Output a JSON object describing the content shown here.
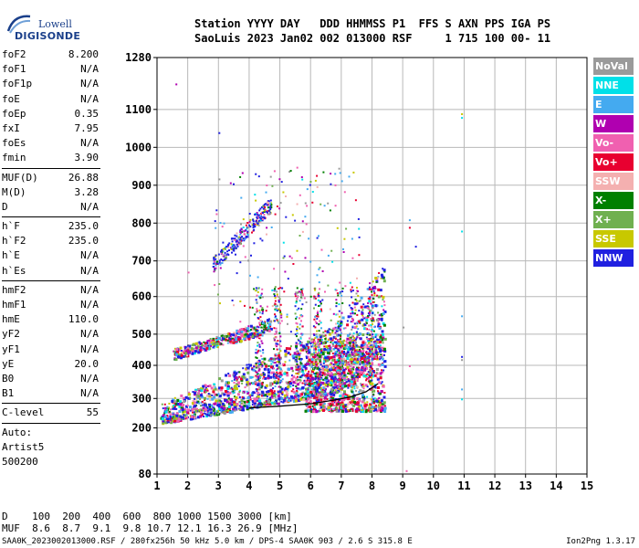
{
  "logo": {
    "line1": "Lowell",
    "line2": "DIGISONDE"
  },
  "header": {
    "row1": "Station YYYY DAY   DDD HHMMSS P1  FFS S AXN PPS IGA PS",
    "row2": "SaoLuis 2023 Jan02 002 013000 RSF     1 715 100 00- 11"
  },
  "params_group1": [
    {
      "name": "foF2",
      "value": "8.200"
    },
    {
      "name": "foF1",
      "value": "N/A"
    },
    {
      "name": "foF1p",
      "value": "N/A"
    },
    {
      "name": "foE",
      "value": "N/A"
    },
    {
      "name": "foEp",
      "value": "0.35"
    },
    {
      "name": "fxI",
      "value": "7.95"
    },
    {
      "name": "foEs",
      "value": "N/A"
    },
    {
      "name": "fmin",
      "value": "3.90"
    }
  ],
  "params_group2": [
    {
      "name": "MUF(D)",
      "value": "26.88"
    },
    {
      "name": "M(D)",
      "value": "3.28"
    },
    {
      "name": "D",
      "value": "N/A"
    }
  ],
  "params_group3": [
    {
      "name": "h`F",
      "value": "235.0"
    },
    {
      "name": "h`F2",
      "value": "235.0"
    },
    {
      "name": "h`E",
      "value": "N/A"
    },
    {
      "name": "h`Es",
      "value": "N/A"
    }
  ],
  "params_group4": [
    {
      "name": "hmF2",
      "value": "N/A"
    },
    {
      "name": "hmF1",
      "value": "N/A"
    },
    {
      "name": "hmE",
      "value": "110.0"
    },
    {
      "name": "yF2",
      "value": "N/A"
    },
    {
      "name": "yF1",
      "value": "N/A"
    },
    {
      "name": "yE",
      "value": "20.0"
    },
    {
      "name": "B0",
      "value": "N/A"
    },
    {
      "name": "B1",
      "value": "N/A"
    }
  ],
  "params_group5": [
    {
      "name": "C-level",
      "value": "55"
    }
  ],
  "autoscale": {
    "line1": "Auto:",
    "line2": "Artist5",
    "line3": "500200"
  },
  "legend": [
    {
      "label": "NoVal",
      "color": "#9a9a9a"
    },
    {
      "label": "NNE",
      "color": "#00e0e8"
    },
    {
      "label": "E",
      "color": "#44aaf0"
    },
    {
      "label": "W",
      "color": "#b000b0"
    },
    {
      "label": "Vo-",
      "color": "#f060b0"
    },
    {
      "label": "Vo+",
      "color": "#e80030"
    },
    {
      "label": "SSW",
      "color": "#f4b0b0"
    },
    {
      "label": "X-",
      "color": "#008000"
    },
    {
      "label": "X+",
      "color": "#70b050"
    },
    {
      "label": "SSE",
      "color": "#c8c800"
    },
    {
      "label": "NNW",
      "color": "#2020e0"
    }
  ],
  "footer": {
    "d_row": "D    100  200  400  600  800 1000 1500 3000 [km]",
    "muf_row": "MUF  8.6  8.7  9.1  9.8 10.7 12.1 16.3 26.9 [MHz]",
    "info": "SAA0K_2023002013000.RSF / 280fx256h 50 kHz 5.0 km / DPS-4 SAA0K 903 / 2.6 S 315.8 E",
    "version": "Ion2Png 1.3.17"
  },
  "chart_data": {
    "type": "scatter",
    "title": "",
    "xlabel": "",
    "ylabel": "",
    "x_unit": "MHz",
    "y_unit": "km",
    "xlim": [
      1,
      15
    ],
    "ylim": [
      80,
      1280
    ],
    "y_scale": "nonlinear (ionogram virtual height scale)",
    "x_ticks": [
      1,
      2,
      3,
      4,
      5,
      6,
      7,
      8,
      9,
      10,
      11,
      12,
      13,
      14,
      15
    ],
    "y_ticks": [
      80,
      200,
      300,
      400,
      500,
      600,
      700,
      800,
      900,
      1000,
      1100,
      1280
    ],
    "y_tick_positions": [
      {
        "v": 80,
        "p": 0
      },
      {
        "v": 200,
        "p": 0.1108
      },
      {
        "v": 300,
        "p": 0.1814
      },
      {
        "v": 400,
        "p": 0.2609
      },
      {
        "v": 500,
        "p": 0.3358
      },
      {
        "v": 600,
        "p": 0.4261
      },
      {
        "v": 700,
        "p": 0.5117
      },
      {
        "v": 800,
        "p": 0.6025
      },
      {
        "v": 900,
        "p": 0.6934
      },
      {
        "v": 1000,
        "p": 0.7844
      },
      {
        "v": 1100,
        "p": 0.8754
      },
      {
        "v": 1280,
        "p": 1.0
      }
    ],
    "grid": true,
    "legend_position": "right",
    "trace_description": "Dense scatter of echoes: main F-layer trace from ~1.1 MHz (~215 km) rising to ~8.2 MHz (~360 km); second-hop trace ~1.5-4.7 MHz (420-580 km); third-hop ~2.8-4.7 MHz (700-880 km); scattered points near 11 MHz.",
    "fitted_trace": [
      {
        "x": 4.0,
        "y": 268
      },
      {
        "x": 5.0,
        "y": 274
      },
      {
        "x": 6.0,
        "y": 282
      },
      {
        "x": 6.8,
        "y": 295
      },
      {
        "x": 7.3,
        "y": 305
      },
      {
        "x": 7.8,
        "y": 320
      },
      {
        "x": 8.2,
        "y": 345
      }
    ]
  }
}
